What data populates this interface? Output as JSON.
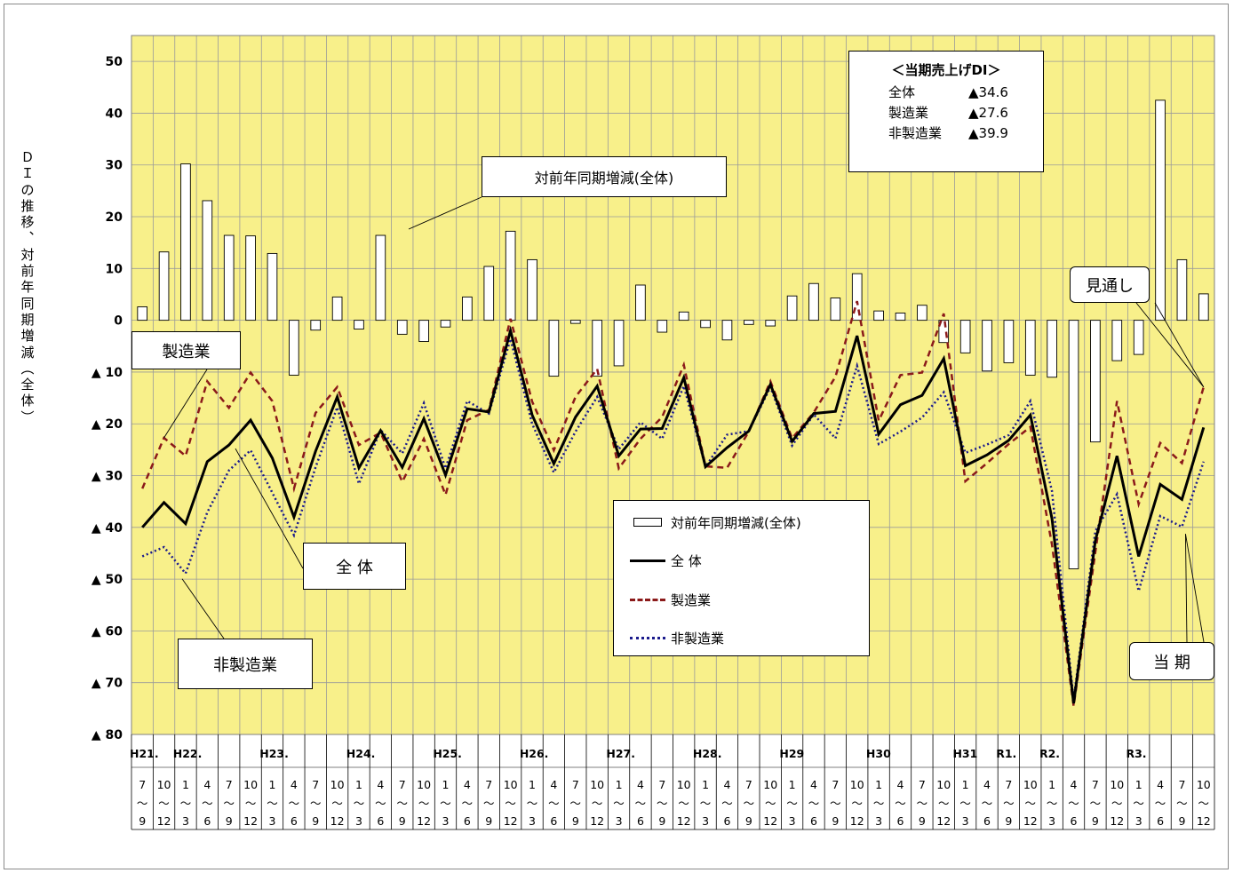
{
  "y_axis_title": "ＤＩの推移、対前年同期増減(全体)",
  "chart_data": {
    "type": "bar+line",
    "ylim": [
      -80,
      55
    ],
    "y_ticks": [
      {
        "v": 50,
        "label": "50"
      },
      {
        "v": 40,
        "label": "40"
      },
      {
        "v": 30,
        "label": "30"
      },
      {
        "v": 20,
        "label": "20"
      },
      {
        "v": 10,
        "label": "10"
      },
      {
        "v": 0,
        "label": "0"
      },
      {
        "v": -10,
        "label": "▲ 10"
      },
      {
        "v": -20,
        "label": "▲ 20"
      },
      {
        "v": -30,
        "label": "▲ 30"
      },
      {
        "v": -40,
        "label": "▲ 40"
      },
      {
        "v": -50,
        "label": "▲ 50"
      },
      {
        "v": -60,
        "label": "▲ 60"
      },
      {
        "v": -70,
        "label": "▲ 70"
      },
      {
        "v": -80,
        "label": "▲ 80"
      }
    ],
    "grid": true,
    "era_labels": [
      {
        "i": 0,
        "label": "H21."
      },
      {
        "i": 2,
        "label": "H22."
      },
      {
        "i": 6,
        "label": "H23."
      },
      {
        "i": 10,
        "label": "H24."
      },
      {
        "i": 14,
        "label": "H25."
      },
      {
        "i": 18,
        "label": "H26."
      },
      {
        "i": 22,
        "label": "H27."
      },
      {
        "i": 26,
        "label": "H28."
      },
      {
        "i": 30,
        "label": "H29"
      },
      {
        "i": 34,
        "label": "H30"
      },
      {
        "i": 38,
        "label": "H31"
      },
      {
        "i": 40,
        "label": "R1."
      },
      {
        "i": 42,
        "label": "R2."
      },
      {
        "i": 46,
        "label": "R3."
      }
    ],
    "categories": [
      {
        "start": "7",
        "end": "9"
      },
      {
        "start": "10",
        "end": "12"
      },
      {
        "start": "1",
        "end": "3"
      },
      {
        "start": "4",
        "end": "6"
      },
      {
        "start": "7",
        "end": "9"
      },
      {
        "start": "10",
        "end": "12"
      },
      {
        "start": "1",
        "end": "3"
      },
      {
        "start": "4",
        "end": "6"
      },
      {
        "start": "7",
        "end": "9"
      },
      {
        "start": "10",
        "end": "12"
      },
      {
        "start": "1",
        "end": "3"
      },
      {
        "start": "4",
        "end": "6"
      },
      {
        "start": "7",
        "end": "9"
      },
      {
        "start": "10",
        "end": "12"
      },
      {
        "start": "1",
        "end": "3"
      },
      {
        "start": "4",
        "end": "6"
      },
      {
        "start": "7",
        "end": "9"
      },
      {
        "start": "10",
        "end": "12"
      },
      {
        "start": "1",
        "end": "3"
      },
      {
        "start": "4",
        "end": "6"
      },
      {
        "start": "7",
        "end": "9"
      },
      {
        "start": "10",
        "end": "12"
      },
      {
        "start": "1",
        "end": "3"
      },
      {
        "start": "4",
        "end": "6"
      },
      {
        "start": "7",
        "end": "9"
      },
      {
        "start": "10",
        "end": "12"
      },
      {
        "start": "1",
        "end": "3"
      },
      {
        "start": "4",
        "end": "6"
      },
      {
        "start": "7",
        "end": "9"
      },
      {
        "start": "10",
        "end": "12"
      },
      {
        "start": "1",
        "end": "3"
      },
      {
        "start": "4",
        "end": "6"
      },
      {
        "start": "7",
        "end": "9"
      },
      {
        "start": "10",
        "end": "12"
      },
      {
        "start": "1",
        "end": "3"
      },
      {
        "start": "4",
        "end": "6"
      },
      {
        "start": "7",
        "end": "9"
      },
      {
        "start": "10",
        "end": "12"
      },
      {
        "start": "1",
        "end": "3"
      },
      {
        "start": "4",
        "end": "6"
      },
      {
        "start": "7",
        "end": "9"
      },
      {
        "start": "10",
        "end": "12"
      },
      {
        "start": "1",
        "end": "3"
      },
      {
        "start": "4",
        "end": "6"
      },
      {
        "start": "7",
        "end": "9"
      },
      {
        "start": "10",
        "end": "12"
      },
      {
        "start": "1",
        "end": "3"
      },
      {
        "start": "4",
        "end": "6"
      },
      {
        "start": "7",
        "end": "9"
      },
      {
        "start": "10",
        "end": "12"
      }
    ],
    "series": [
      {
        "name": "対前年同期増減(全体)",
        "type": "bar",
        "color": "#ffffff",
        "values": [
          2.6,
          13.2,
          30.2,
          23.1,
          16.4,
          16.3,
          12.9,
          -10.6,
          -1.9,
          4.5,
          -1.7,
          16.4,
          -2.7,
          -4.1,
          -1.3,
          4.5,
          10.4,
          17.2,
          11.7,
          -10.8,
          -0.6,
          -10.8,
          -8.8,
          6.8,
          -2.3,
          1.6,
          -1.4,
          -3.8,
          -0.8,
          -1.1,
          4.7,
          7.1,
          4.3,
          9.0,
          1.8,
          1.4,
          2.9,
          -4.3,
          -6.3,
          -9.8,
          -8.2,
          -10.6,
          -11.0,
          -48.0,
          -23.5,
          -7.8,
          -6.6,
          42.5,
          11.7,
          5.1
        ]
      },
      {
        "name": "全 体",
        "type": "line",
        "color": "#000000",
        "dash": "solid",
        "values": [
          -40.0,
          -35.2,
          -39.3,
          -27.3,
          -24.1,
          -19.3,
          -26.6,
          -38.0,
          -25.3,
          -14.8,
          -28.5,
          -21.3,
          -28.4,
          -19.0,
          -29.9,
          -17.1,
          -17.7,
          -2.0,
          -18.3,
          -27.7,
          -18.7,
          -12.7,
          -26.2,
          -21.0,
          -20.9,
          -11.1,
          -28.3,
          -24.6,
          -21.4,
          -12.4,
          -23.4,
          -18.0,
          -17.6,
          -3.0,
          -22.0,
          -16.3,
          -14.5,
          -7.4,
          -28.1,
          -26.0,
          -23.2,
          -18.3,
          -38.3,
          -74.0,
          -42.6,
          -26.2,
          -45.6,
          -31.7,
          -34.6,
          -20.7
        ]
      },
      {
        "name": "製造業",
        "type": "line",
        "color": "#8b1a1a",
        "dash": "dashed",
        "values": [
          -32.5,
          -22.7,
          -26.2,
          -11.8,
          -16.9,
          -10.1,
          -15.6,
          -32.5,
          -17.9,
          -12.9,
          -24.1,
          -21.7,
          -31.2,
          -22.9,
          -33.7,
          -19.3,
          -17.3,
          0.3,
          -15.7,
          -25.1,
          -14.8,
          -9.4,
          -28.6,
          -22.9,
          -18.7,
          -8.6,
          -28.2,
          -28.5,
          -21.5,
          -11.8,
          -22.8,
          -17.8,
          -10.9,
          3.7,
          -19.4,
          -10.6,
          -10.1,
          1.3,
          -31.1,
          -27.6,
          -23.9,
          -20.6,
          -43.3,
          -74.5,
          -44.8,
          -15.6,
          -35.5,
          -23.7,
          -27.6,
          -12.9
        ]
      },
      {
        "name": "非製造業",
        "type": "line",
        "color": "#1a1a8c",
        "dash": "dotted",
        "values": [
          -45.6,
          -43.8,
          -48.9,
          -37.1,
          -29.0,
          -25.1,
          -33.3,
          -41.5,
          -28.4,
          -16.8,
          -31.6,
          -21.2,
          -25.7,
          -16.0,
          -28.6,
          -15.6,
          -18.0,
          -3.6,
          -20.0,
          -29.4,
          -21.5,
          -14.8,
          -24.9,
          -19.7,
          -22.9,
          -12.7,
          -28.3,
          -22.1,
          -21.4,
          -12.9,
          -24.2,
          -18.2,
          -22.8,
          -8.8,
          -23.9,
          -21.5,
          -18.8,
          -13.9,
          -25.6,
          -24.0,
          -22.2,
          -15.6,
          -33.0,
          -73.3,
          -40.7,
          -33.6,
          -52.3,
          -37.8,
          -39.9,
          -27.3
        ]
      }
    ]
  },
  "legend": {
    "items": [
      {
        "label": "対前年同期増減(全体)"
      },
      {
        "label": "全 体"
      },
      {
        "label": "製造業"
      },
      {
        "label": "非製造業"
      }
    ]
  },
  "infobox": {
    "title": "＜当期売上げDI＞",
    "rows": [
      {
        "k": "全体",
        "v": "▲34.6"
      },
      {
        "k": "製造業",
        "v": "▲27.6"
      },
      {
        "k": "非製造業",
        "v": "▲39.9"
      }
    ]
  },
  "callouts": {
    "bar_note": "対前年同期増減(全体)",
    "manufacturing": "製造業",
    "overall": "全 体",
    "non_manufacturing": "非製造業",
    "forecast": "見通し",
    "current": "当 期"
  },
  "colors": {
    "plot_bg": "#f8f08a",
    "grid": "#9a9a9a",
    "overall": "#000000",
    "manufacturing": "#8b1a1a",
    "non_manufacturing": "#1a1a8c"
  }
}
